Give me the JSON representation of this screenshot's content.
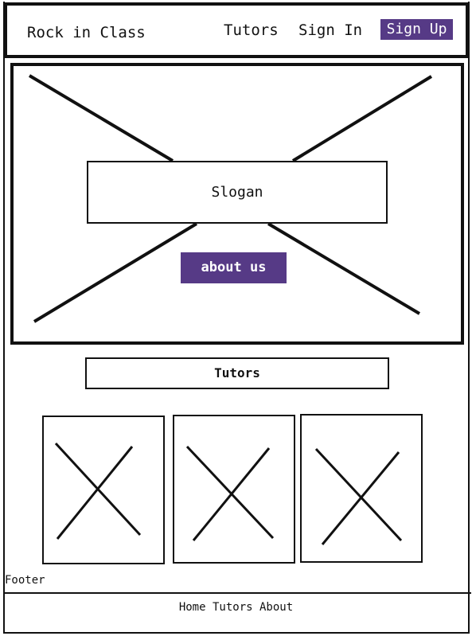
{
  "header": {
    "brand": "Rock in Class",
    "nav": {
      "tutors": "Tutors",
      "sign_in": "Sign In",
      "sign_up": "Sign Up"
    }
  },
  "hero": {
    "image": "placeholder-image",
    "slogan": "Slogan",
    "about_button": "about us"
  },
  "tutors_section": {
    "heading": "Tutors",
    "cards": [
      {
        "image": "placeholder-image"
      },
      {
        "image": "placeholder-image"
      },
      {
        "image": "placeholder-image"
      }
    ]
  },
  "footer": {
    "label": "Footer",
    "links": {
      "home": "Home",
      "tutors": "Tutors",
      "about": "About"
    }
  },
  "colors": {
    "accent": "#563a86",
    "ink": "#111111",
    "background": "#ffffff"
  }
}
